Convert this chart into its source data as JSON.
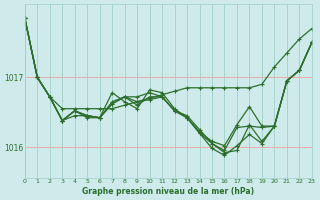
{
  "xlabel": "Graphe pression niveau de la mer (hPa)",
  "bg_color": "#ceeaea",
  "grid_color_v": "#a0d0c8",
  "grid_color_h": "#f0a0a0",
  "line_color": "#2d6e2d",
  "marker": "+",
  "markersize": 3.5,
  "linewidth": 0.9,
  "xlim": [
    0,
    23
  ],
  "ylim": [
    1015.55,
    1018.05
  ],
  "yticks": [
    1016,
    1017
  ],
  "xticks": [
    0,
    1,
    2,
    3,
    4,
    5,
    6,
    7,
    8,
    9,
    10,
    11,
    12,
    13,
    14,
    15,
    16,
    17,
    18,
    19,
    20,
    21,
    22,
    23
  ],
  "series": [
    [
      1017.85,
      1017.0,
      1016.72,
      1016.55,
      1016.55,
      1016.55,
      1016.55,
      1016.55,
      1016.6,
      1016.65,
      1016.7,
      1016.75,
      1016.8,
      1016.85,
      1016.85,
      1016.85,
      1016.85,
      1016.85,
      1016.85,
      1016.9,
      1017.15,
      1017.35,
      1017.55,
      1017.7
    ],
    [
      1017.85,
      1017.0,
      1016.72,
      1016.38,
      1016.45,
      1016.45,
      1016.42,
      1016.62,
      1016.72,
      1016.6,
      1016.72,
      1016.72,
      1016.52,
      1016.45,
      1016.25,
      1016.05,
      1015.95,
      1016.28,
      1016.3,
      1016.28,
      1016.3,
      1016.95,
      1017.1,
      1017.5
    ],
    [
      1017.85,
      1017.0,
      1016.72,
      1016.38,
      1016.52,
      1016.45,
      1016.42,
      1016.78,
      1016.65,
      1016.55,
      1016.82,
      1016.78,
      1016.55,
      1016.42,
      1016.22,
      1016.08,
      1016.02,
      1016.32,
      1016.58,
      1016.3,
      1016.3,
      1016.95,
      1017.1,
      1017.5
    ],
    [
      1017.85,
      1017.0,
      1016.72,
      1016.38,
      1016.52,
      1016.45,
      1016.42,
      1016.62,
      1016.72,
      1016.65,
      1016.68,
      1016.72,
      1016.52,
      1016.42,
      1016.2,
      1015.98,
      1015.88,
      1016.02,
      1016.18,
      1016.05,
      1016.3,
      1016.95,
      1017.1,
      1017.5
    ],
    [
      1017.85,
      1017.0,
      1016.72,
      1016.38,
      1016.52,
      1016.42,
      1016.42,
      1016.65,
      1016.72,
      1016.72,
      1016.78,
      1016.72,
      1016.52,
      1016.42,
      1016.2,
      1016.05,
      1015.92,
      1015.95,
      1016.32,
      1016.08,
      1016.3,
      1016.95,
      1017.1,
      1017.5
    ]
  ]
}
